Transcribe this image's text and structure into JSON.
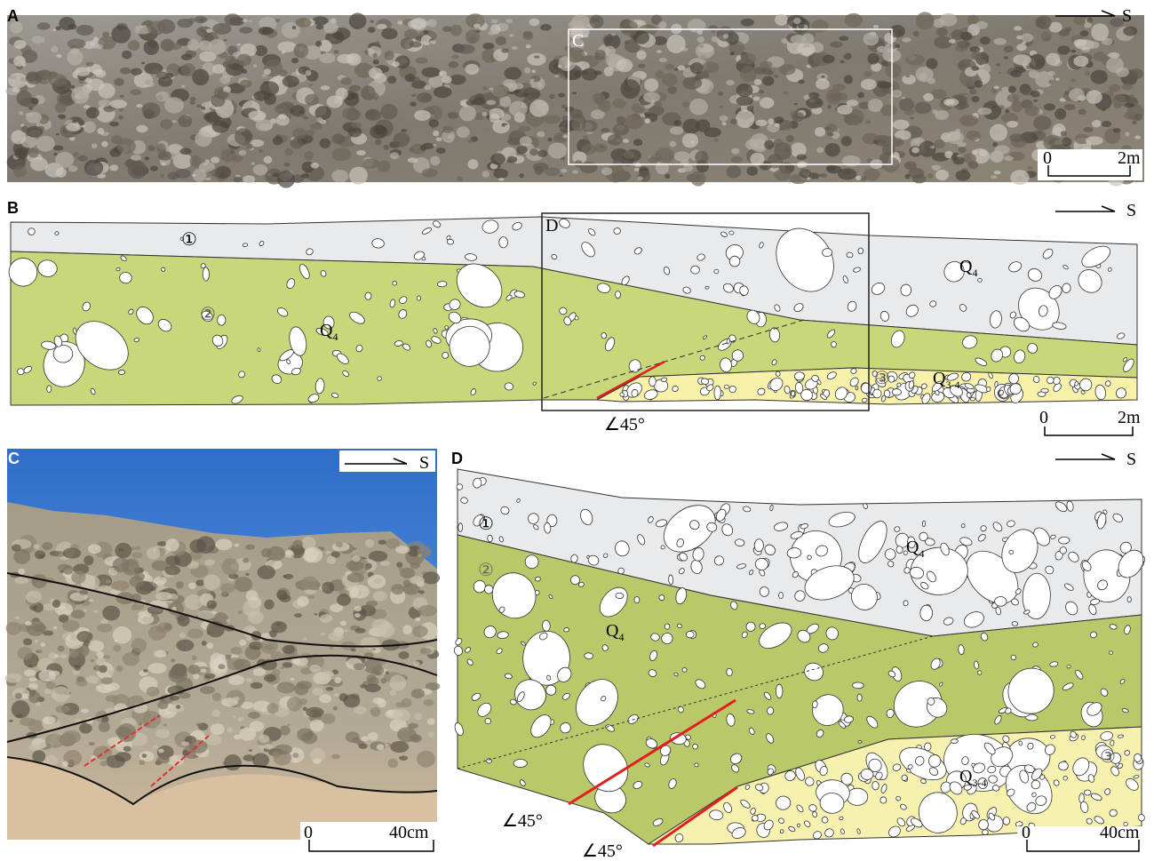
{
  "panels": {
    "a": {
      "label": "A",
      "direction": "S",
      "box_label": "C",
      "scale": [
        "0",
        "2m"
      ]
    },
    "b": {
      "label": "B",
      "direction": "S",
      "box_label": "D",
      "scale": [
        "0",
        "2m"
      ],
      "units": [
        "①",
        "②",
        "③"
      ],
      "formations": [
        {
          "base": "Q",
          "sub": "4"
        },
        {
          "base": "Q",
          "sub": "4"
        },
        {
          "base": "Q",
          "sub": "3-4"
        }
      ],
      "angle": "∠45°"
    },
    "c": {
      "label": "C",
      "direction": "S",
      "scale": [
        "0",
        "40cm"
      ]
    },
    "d": {
      "label": "D",
      "direction": "S",
      "scale": [
        "0",
        "40cm"
      ],
      "units": [
        "①",
        "②",
        "③"
      ],
      "formations": [
        {
          "base": "Q",
          "sub": "4"
        },
        {
          "base": "Q",
          "sub": "4"
        },
        {
          "base": "Q",
          "sub": "3-4"
        }
      ],
      "angles": [
        "∠45°",
        "∠45°"
      ]
    }
  }
}
